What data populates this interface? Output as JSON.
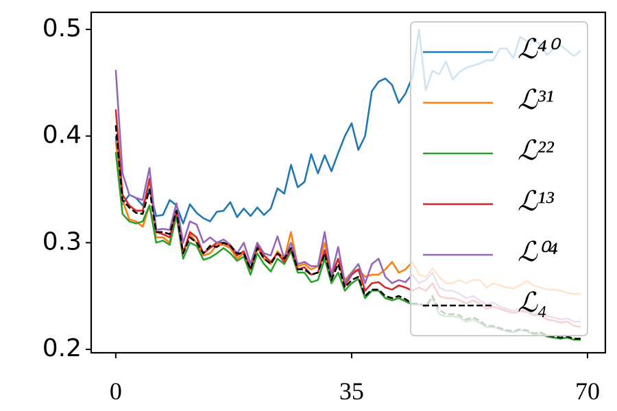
{
  "chart_data": {
    "type": "line",
    "x": [
      0,
      1,
      2,
      3,
      4,
      5,
      6,
      7,
      8,
      9,
      10,
      11,
      12,
      13,
      14,
      15,
      16,
      17,
      18,
      19,
      20,
      21,
      22,
      23,
      24,
      25,
      26,
      27,
      28,
      29,
      30,
      31,
      32,
      33,
      34,
      35,
      36,
      37,
      38,
      39,
      40,
      41,
      42,
      43,
      44,
      45,
      46,
      47,
      48,
      49,
      50,
      51,
      52,
      53,
      54,
      55,
      56,
      57,
      58,
      59,
      60,
      61,
      62,
      63,
      64,
      65,
      66,
      67,
      68,
      69
    ],
    "xlim": [
      -3.65,
      72.65
    ],
    "xticks": [
      0,
      35,
      70
    ],
    "ylim": [
      0.1968,
      0.516
    ],
    "yticks": [
      0.2,
      0.3,
      0.4,
      0.5
    ],
    "legend": "upper right",
    "series": [
      {
        "name": "ℒ⁴⁰",
        "color": "#1f77b4",
        "dash": false,
        "values": [
          0.4,
          0.336,
          0.345,
          0.342,
          0.335,
          0.35,
          0.325,
          0.326,
          0.34,
          0.335,
          0.318,
          0.336,
          0.328,
          0.323,
          0.32,
          0.329,
          0.33,
          0.338,
          0.324,
          0.332,
          0.325,
          0.333,
          0.326,
          0.332,
          0.351,
          0.346,
          0.373,
          0.352,
          0.357,
          0.383,
          0.365,
          0.382,
          0.367,
          0.384,
          0.4,
          0.412,
          0.387,
          0.4,
          0.442,
          0.451,
          0.454,
          0.448,
          0.431,
          0.44,
          0.455,
          0.5,
          0.443,
          0.461,
          0.458,
          0.47,
          0.453,
          0.46,
          0.464,
          0.466,
          0.468,
          0.471,
          0.471,
          0.482,
          0.482,
          0.473,
          0.493,
          0.489,
          0.49,
          0.486,
          0.476,
          0.482,
          0.485,
          0.48,
          0.475,
          0.48
        ]
      },
      {
        "name": "ℒ³¹",
        "color": "#ff7f0e",
        "dash": false,
        "values": [
          0.395,
          0.34,
          0.322,
          0.32,
          0.315,
          0.335,
          0.305,
          0.305,
          0.3,
          0.33,
          0.29,
          0.308,
          0.3,
          0.288,
          0.29,
          0.298,
          0.298,
          0.295,
          0.285,
          0.29,
          0.275,
          0.295,
          0.285,
          0.28,
          0.292,
          0.285,
          0.31,
          0.278,
          0.28,
          0.275,
          0.278,
          0.3,
          0.27,
          0.285,
          0.265,
          0.272,
          0.275,
          0.268,
          0.27,
          0.27,
          0.275,
          0.282,
          0.272,
          0.275,
          0.282,
          0.27,
          0.268,
          0.276,
          0.268,
          0.262,
          0.262,
          0.265,
          0.262,
          0.265,
          0.265,
          0.258,
          0.262,
          0.26,
          0.258,
          0.257,
          0.26,
          0.264,
          0.26,
          0.258,
          0.256,
          0.256,
          0.255,
          0.253,
          0.252,
          0.252
        ]
      },
      {
        "name": "ℒ²²",
        "color": "#2ca02c",
        "dash": false,
        "values": [
          0.385,
          0.327,
          0.32,
          0.318,
          0.32,
          0.335,
          0.3,
          0.302,
          0.298,
          0.325,
          0.285,
          0.3,
          0.297,
          0.284,
          0.286,
          0.29,
          0.295,
          0.29,
          0.283,
          0.287,
          0.27,
          0.29,
          0.28,
          0.273,
          0.285,
          0.28,
          0.292,
          0.272,
          0.272,
          0.263,
          0.265,
          0.285,
          0.262,
          0.272,
          0.255,
          0.262,
          0.266,
          0.248,
          0.255,
          0.255,
          0.248,
          0.246,
          0.248,
          0.245,
          0.242,
          0.242,
          0.24,
          0.248,
          0.233,
          0.231,
          0.231,
          0.23,
          0.226,
          0.228,
          0.225,
          0.221,
          0.221,
          0.219,
          0.217,
          0.216,
          0.218,
          0.217,
          0.214,
          0.215,
          0.212,
          0.211,
          0.21,
          0.211,
          0.209,
          0.209
        ]
      },
      {
        "name": "ℒ¹³",
        "color": "#d62728",
        "dash": false,
        "values": [
          0.425,
          0.345,
          0.335,
          0.33,
          0.33,
          0.36,
          0.31,
          0.308,
          0.305,
          0.33,
          0.29,
          0.31,
          0.305,
          0.29,
          0.295,
          0.3,
          0.3,
          0.297,
          0.288,
          0.292,
          0.275,
          0.298,
          0.288,
          0.282,
          0.29,
          0.282,
          0.295,
          0.275,
          0.277,
          0.27,
          0.272,
          0.293,
          0.268,
          0.285,
          0.26,
          0.27,
          0.275,
          0.255,
          0.262,
          0.263,
          0.258,
          0.256,
          0.26,
          0.258,
          0.255,
          0.258,
          0.255,
          0.262,
          0.25,
          0.248,
          0.248,
          0.246,
          0.243,
          0.246,
          0.243,
          0.238,
          0.24,
          0.238,
          0.236,
          0.234,
          0.236,
          0.235,
          0.232,
          0.232,
          0.228,
          0.227,
          0.225,
          0.226,
          0.222,
          0.221
        ]
      },
      {
        "name": "ℒ⁰⁴",
        "color": "#9467bd",
        "dash": false,
        "values": [
          0.462,
          0.365,
          0.345,
          0.342,
          0.34,
          0.37,
          0.312,
          0.313,
          0.312,
          0.337,
          0.3,
          0.32,
          0.317,
          0.3,
          0.305,
          0.3,
          0.303,
          0.298,
          0.29,
          0.3,
          0.28,
          0.3,
          0.29,
          0.288,
          0.306,
          0.285,
          0.3,
          0.28,
          0.282,
          0.278,
          0.278,
          0.31,
          0.27,
          0.296,
          0.262,
          0.272,
          0.28,
          0.262,
          0.28,
          0.285,
          0.268,
          0.262,
          0.265,
          0.263,
          0.27,
          0.262,
          0.265,
          0.272,
          0.258,
          0.255,
          0.255,
          0.252,
          0.248,
          0.25,
          0.246,
          0.242,
          0.244,
          0.24,
          0.238,
          0.236,
          0.238,
          0.236,
          0.233,
          0.234,
          0.231,
          0.23,
          0.228,
          0.229,
          0.226,
          0.226
        ]
      },
      {
        "name": "ℒ₄",
        "color": "#000000",
        "dash": true,
        "values": [
          0.41,
          0.34,
          0.333,
          0.328,
          0.327,
          0.35,
          0.31,
          0.31,
          0.308,
          0.33,
          0.29,
          0.305,
          0.3,
          0.29,
          0.297,
          0.296,
          0.3,
          0.297,
          0.29,
          0.29,
          0.275,
          0.295,
          0.285,
          0.28,
          0.29,
          0.285,
          0.295,
          0.275,
          0.275,
          0.27,
          0.272,
          0.29,
          0.265,
          0.28,
          0.258,
          0.265,
          0.268,
          0.25,
          0.256,
          0.256,
          0.25,
          0.248,
          0.25,
          0.247,
          0.243,
          0.243,
          0.24,
          0.25,
          0.237,
          0.233,
          0.233,
          0.232,
          0.228,
          0.23,
          0.227,
          0.222,
          0.222,
          0.22,
          0.218,
          0.217,
          0.219,
          0.218,
          0.215,
          0.216,
          0.213,
          0.212,
          0.211,
          0.212,
          0.21,
          0.21
        ]
      }
    ]
  }
}
